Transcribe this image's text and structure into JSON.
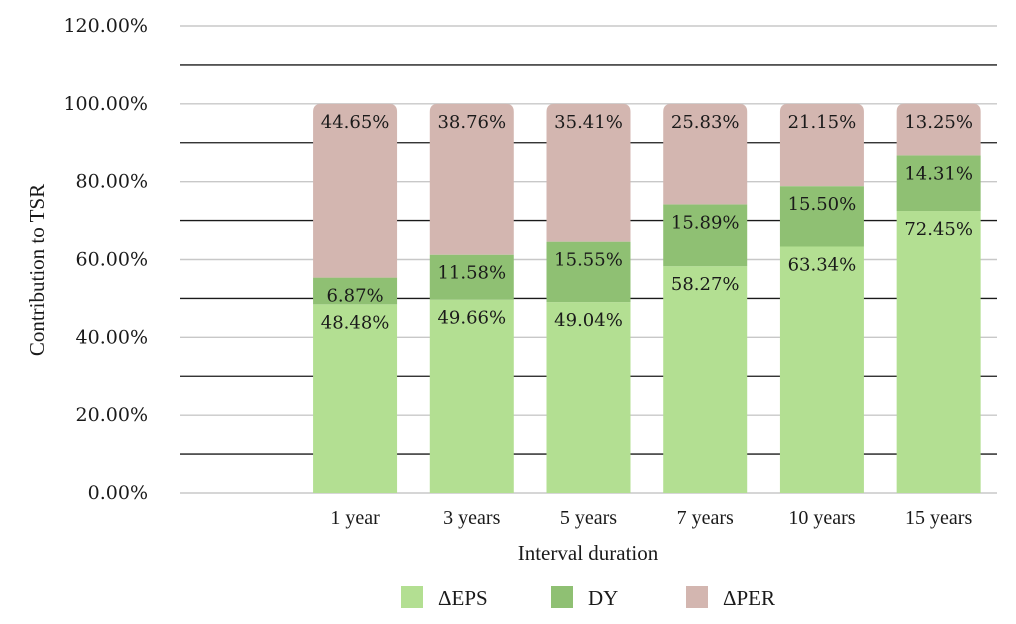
{
  "chart_data": {
    "type": "bar",
    "stacked": true,
    "title": "",
    "xlabel": "Interval duration",
    "ylabel": "Contribution to TSR",
    "ylim": [
      0,
      120
    ],
    "y_tick_step": 20,
    "y_ticks": [
      "0.00%",
      "20.00%",
      "40.00%",
      "60.00%",
      "80.00%",
      "100.00%",
      "120.00%"
    ],
    "categories": [
      "",
      "1 year",
      "3 years",
      "5 years",
      "7 years",
      "10 years",
      "15 years"
    ],
    "series": [
      {
        "name": "ΔEPS",
        "color": "#b3df92",
        "values": [
          null,
          48.48,
          49.66,
          49.04,
          58.27,
          63.34,
          72.45
        ],
        "labels": [
          "",
          "48.48%",
          "49.66%",
          "49.04%",
          "58.27%",
          "63.34%",
          "72.45%"
        ]
      },
      {
        "name": "DY",
        "color": "#8fc073",
        "values": [
          null,
          6.87,
          11.58,
          15.55,
          15.89,
          15.5,
          14.31
        ],
        "labels": [
          "",
          "6.87%",
          "11.58%",
          "15.55%",
          "15.89%",
          "15.50%",
          "14.31%"
        ]
      },
      {
        "name": "ΔPER",
        "color": "#d3b6b0",
        "values": [
          null,
          44.65,
          38.76,
          35.41,
          25.83,
          21.15,
          13.25
        ],
        "labels": [
          "",
          "44.65%",
          "38.76%",
          "35.41%",
          "25.83%",
          "21.15%",
          "13.25%"
        ]
      }
    ],
    "legend_position": "bottom",
    "grid": true
  }
}
